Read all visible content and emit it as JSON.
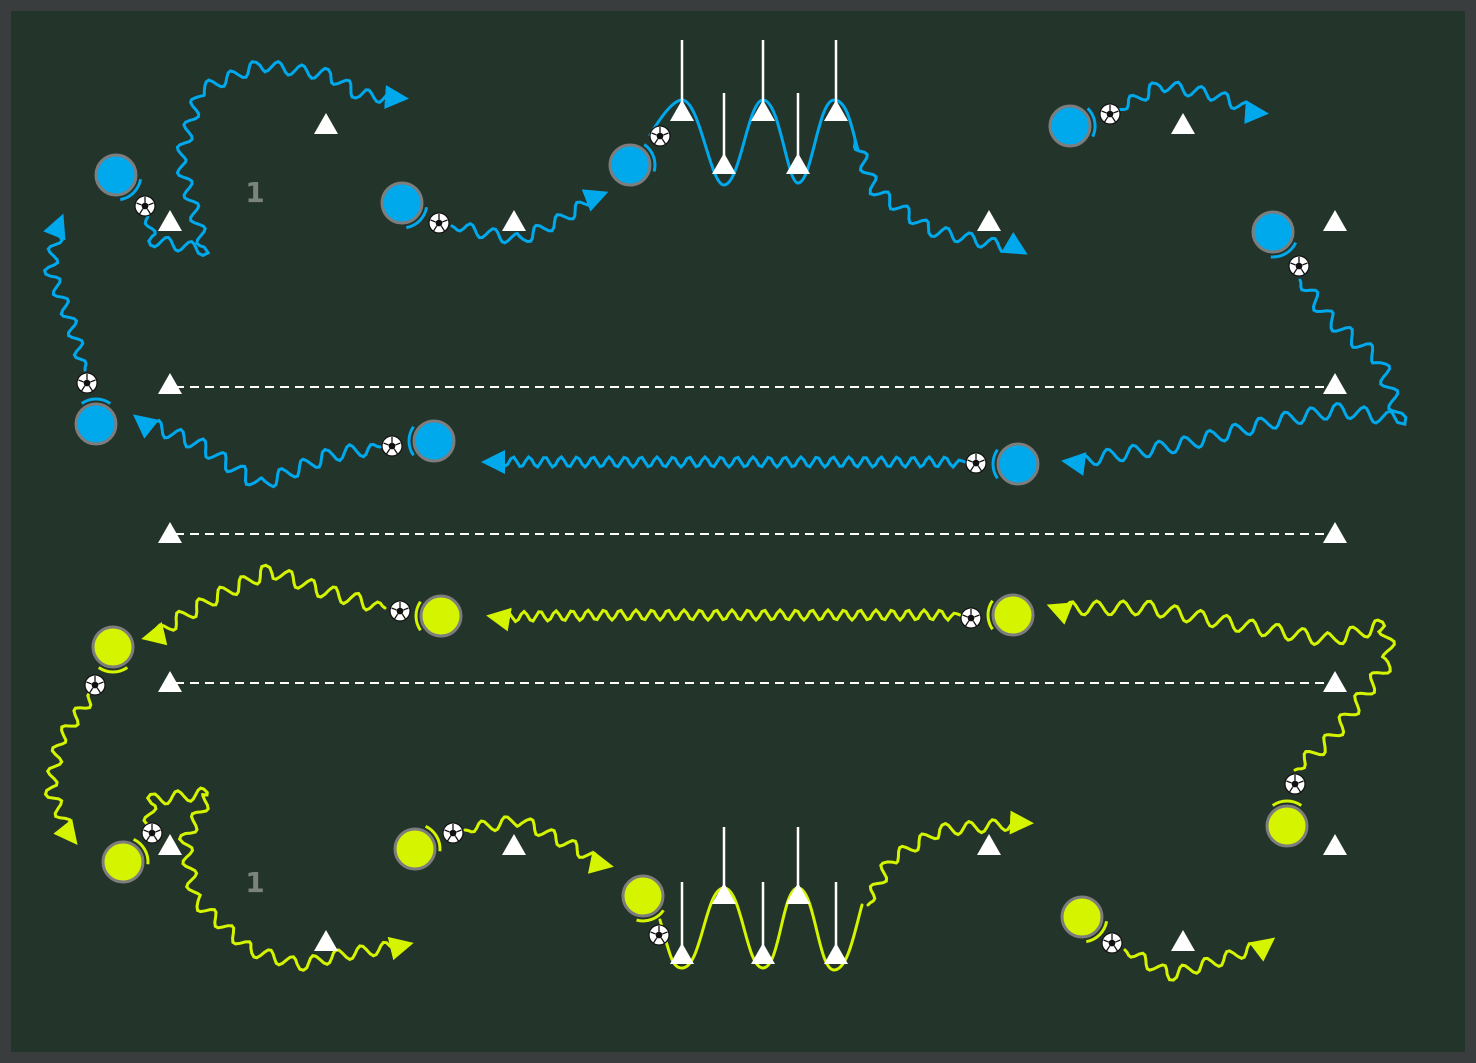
{
  "diagram": {
    "labels": {
      "top_group": "1",
      "bottom_group": "1"
    },
    "colors": {
      "frame": "#3a3d3d",
      "pitch": "#23342b",
      "blue_team": "#00a8ec",
      "green_team": "#d4f400",
      "marker": "#ffffff",
      "label": "#7b837f"
    },
    "icons": [
      "player-icon",
      "soccer-ball-icon",
      "cone-icon",
      "pole-icon",
      "arrow-icon"
    ]
  }
}
